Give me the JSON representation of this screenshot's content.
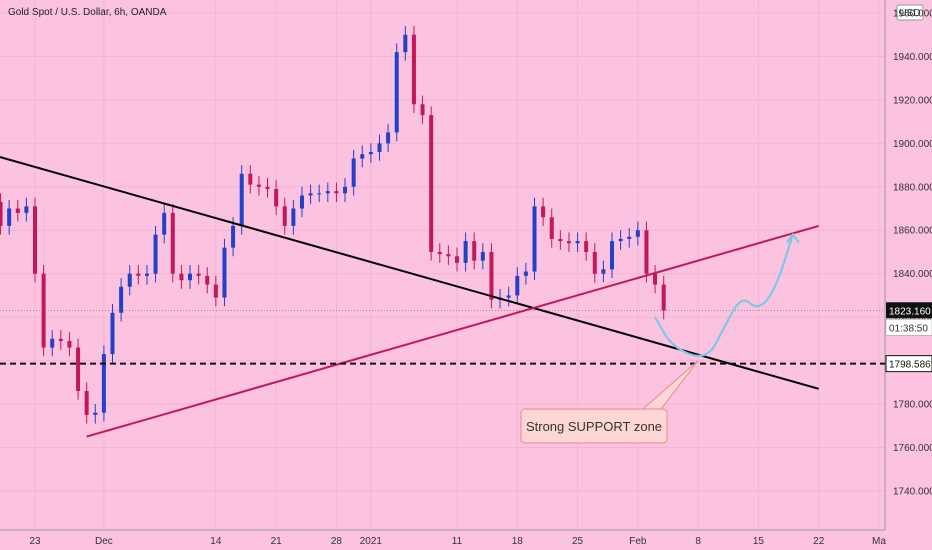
{
  "chart_data": {
    "type": "candlestick",
    "title": "Gold Spot / U.S. Dollar, 6h, OANDA",
    "currency": "USD",
    "ylim": [
      1722,
      1966
    ],
    "y_ticks": [
      1740,
      1760,
      1780,
      1800,
      1820,
      1840,
      1860,
      1880,
      1900,
      1920,
      1940,
      1960
    ],
    "y_tick_labels": [
      "1740.000",
      "1760.000",
      "1780.000",
      "1800.000",
      "1820.000",
      "1840.000",
      "1860.000",
      "1880.000",
      "1900.000",
      "1920.000",
      "1940.000",
      "1960.000"
    ],
    "x_ticks": [
      {
        "label": "23",
        "date": "2020-11-23"
      },
      {
        "label": "Dec",
        "date": "2020-12-01"
      },
      {
        "label": "14",
        "date": "2020-12-14"
      },
      {
        "label": "21",
        "date": "2020-12-21"
      },
      {
        "label": "28",
        "date": "2020-12-28"
      },
      {
        "label": "2021",
        "date": "2021-01-01"
      },
      {
        "label": "11",
        "date": "2021-01-11"
      },
      {
        "label": "18",
        "date": "2021-01-18"
      },
      {
        "label": "25",
        "date": "2021-01-25"
      },
      {
        "label": "Feb",
        "date": "2021-02-01"
      },
      {
        "label": "8",
        "date": "2021-02-08"
      },
      {
        "label": "15",
        "date": "2021-02-15"
      },
      {
        "label": "22",
        "date": "2021-02-22"
      },
      {
        "label": "Ma",
        "date": "2021-03-01"
      }
    ],
    "current_price": {
      "value": 1823.16,
      "label": "1823.160",
      "countdown": "01:38:50"
    },
    "support_level": {
      "value": 1798.586,
      "label": "1798.586"
    },
    "annotation": {
      "text": "Strong SUPPORT zone",
      "date": "2021-02-08",
      "price": 1800
    },
    "trendlines": [
      {
        "name": "descending",
        "color": "#000000",
        "from": {
          "date": "2020-11-16",
          "price": 1897
        },
        "to": {
          "date": "2021-02-22",
          "price": 1787
        }
      },
      {
        "name": "ascending",
        "color": "#c2185b",
        "from": {
          "date": "2020-11-29",
          "price": 1765
        },
        "to": {
          "date": "2021-02-22",
          "price": 1862
        }
      }
    ],
    "projection": {
      "color": "#7ec8e3",
      "points": [
        {
          "date": "2021-02-03",
          "price": 1820
        },
        {
          "date": "2021-02-05",
          "price": 1806
        },
        {
          "date": "2021-02-09",
          "price": 1800
        },
        {
          "date": "2021-02-11",
          "price": 1815
        },
        {
          "date": "2021-02-13",
          "price": 1830
        },
        {
          "date": "2021-02-15",
          "price": 1823
        },
        {
          "date": "2021-02-17",
          "price": 1833
        },
        {
          "date": "2021-02-19",
          "price": 1858
        }
      ]
    },
    "colors": {
      "up": "#2340c8",
      "down": "#c2185b",
      "background": "#fbc3e0"
    },
    "series": [
      {
        "date": "2020-11-18",
        "close": 1873
      },
      {
        "date": "2020-11-19",
        "close": 1862
      },
      {
        "date": "2020-11-20",
        "close": 1870
      },
      {
        "date": "2020-11-21",
        "close": 1868
      },
      {
        "date": "2020-11-22",
        "close": 1871
      },
      {
        "date": "2020-11-23",
        "close": 1840
      },
      {
        "date": "2020-11-24",
        "close": 1806
      },
      {
        "date": "2020-11-25",
        "close": 1810
      },
      {
        "date": "2020-11-26",
        "close": 1809
      },
      {
        "date": "2020-11-27",
        "close": 1806
      },
      {
        "date": "2020-11-28",
        "close": 1786
      },
      {
        "date": "2020-11-29",
        "close": 1775
      },
      {
        "date": "2020-11-30",
        "close": 1776
      },
      {
        "date": "2020-12-01",
        "close": 1803
      },
      {
        "date": "2020-12-02",
        "close": 1822
      },
      {
        "date": "2020-12-03",
        "close": 1834
      },
      {
        "date": "2020-12-04",
        "close": 1840
      },
      {
        "date": "2020-12-05",
        "close": 1839
      },
      {
        "date": "2020-12-06",
        "close": 1840
      },
      {
        "date": "2020-12-07",
        "close": 1858
      },
      {
        "date": "2020-12-08",
        "close": 1868
      },
      {
        "date": "2020-12-09",
        "close": 1840
      },
      {
        "date": "2020-12-10",
        "close": 1837
      },
      {
        "date": "2020-12-11",
        "close": 1840
      },
      {
        "date": "2020-12-12",
        "close": 1839
      },
      {
        "date": "2020-12-13",
        "close": 1835
      },
      {
        "date": "2020-12-14",
        "close": 1829
      },
      {
        "date": "2020-12-15",
        "close": 1852
      },
      {
        "date": "2020-12-16",
        "close": 1862
      },
      {
        "date": "2020-12-17",
        "close": 1886
      },
      {
        "date": "2020-12-18",
        "close": 1881
      },
      {
        "date": "2020-12-19",
        "close": 1880
      },
      {
        "date": "2020-12-20",
        "close": 1879
      },
      {
        "date": "2020-12-21",
        "close": 1871
      },
      {
        "date": "2020-12-22",
        "close": 1862
      },
      {
        "date": "2020-12-23",
        "close": 1870
      },
      {
        "date": "2020-12-24",
        "close": 1876
      },
      {
        "date": "2020-12-25",
        "close": 1877
      },
      {
        "date": "2020-12-26",
        "close": 1877
      },
      {
        "date": "2020-12-27",
        "close": 1878
      },
      {
        "date": "2020-12-28",
        "close": 1877
      },
      {
        "date": "2020-12-29",
        "close": 1880
      },
      {
        "date": "2020-12-30",
        "close": 1893
      },
      {
        "date": "2020-12-31",
        "close": 1895
      },
      {
        "date": "2021-01-01",
        "close": 1896
      },
      {
        "date": "2021-01-02",
        "close": 1900
      },
      {
        "date": "2021-01-03",
        "close": 1905
      },
      {
        "date": "2021-01-04",
        "close": 1942
      },
      {
        "date": "2021-01-05",
        "close": 1950
      },
      {
        "date": "2021-01-06",
        "close": 1918
      },
      {
        "date": "2021-01-07",
        "close": 1913
      },
      {
        "date": "2021-01-08",
        "close": 1850
      },
      {
        "date": "2021-01-09",
        "close": 1849
      },
      {
        "date": "2021-01-10",
        "close": 1848
      },
      {
        "date": "2021-01-11",
        "close": 1845
      },
      {
        "date": "2021-01-12",
        "close": 1855
      },
      {
        "date": "2021-01-13",
        "close": 1846
      },
      {
        "date": "2021-01-14",
        "close": 1850
      },
      {
        "date": "2021-01-15",
        "close": 1828
      },
      {
        "date": "2021-01-16",
        "close": 1829
      },
      {
        "date": "2021-01-17",
        "close": 1830
      },
      {
        "date": "2021-01-18",
        "close": 1839
      },
      {
        "date": "2021-01-19",
        "close": 1841
      },
      {
        "date": "2021-01-20",
        "close": 1871
      },
      {
        "date": "2021-01-21",
        "close": 1866
      },
      {
        "date": "2021-01-22",
        "close": 1856
      },
      {
        "date": "2021-01-23",
        "close": 1855
      },
      {
        "date": "2021-01-24",
        "close": 1854
      },
      {
        "date": "2021-01-25",
        "close": 1855
      },
      {
        "date": "2021-01-26",
        "close": 1850
      },
      {
        "date": "2021-01-27",
        "close": 1840
      },
      {
        "date": "2021-01-28",
        "close": 1842
      },
      {
        "date": "2021-01-29",
        "close": 1855
      },
      {
        "date": "2021-01-30",
        "close": 1856
      },
      {
        "date": "2021-01-31",
        "close": 1857
      },
      {
        "date": "2021-02-01",
        "close": 1860
      },
      {
        "date": "2021-02-02",
        "close": 1840
      },
      {
        "date": "2021-02-03",
        "close": 1835
      },
      {
        "date": "2021-02-04",
        "close": 1823
      }
    ]
  }
}
